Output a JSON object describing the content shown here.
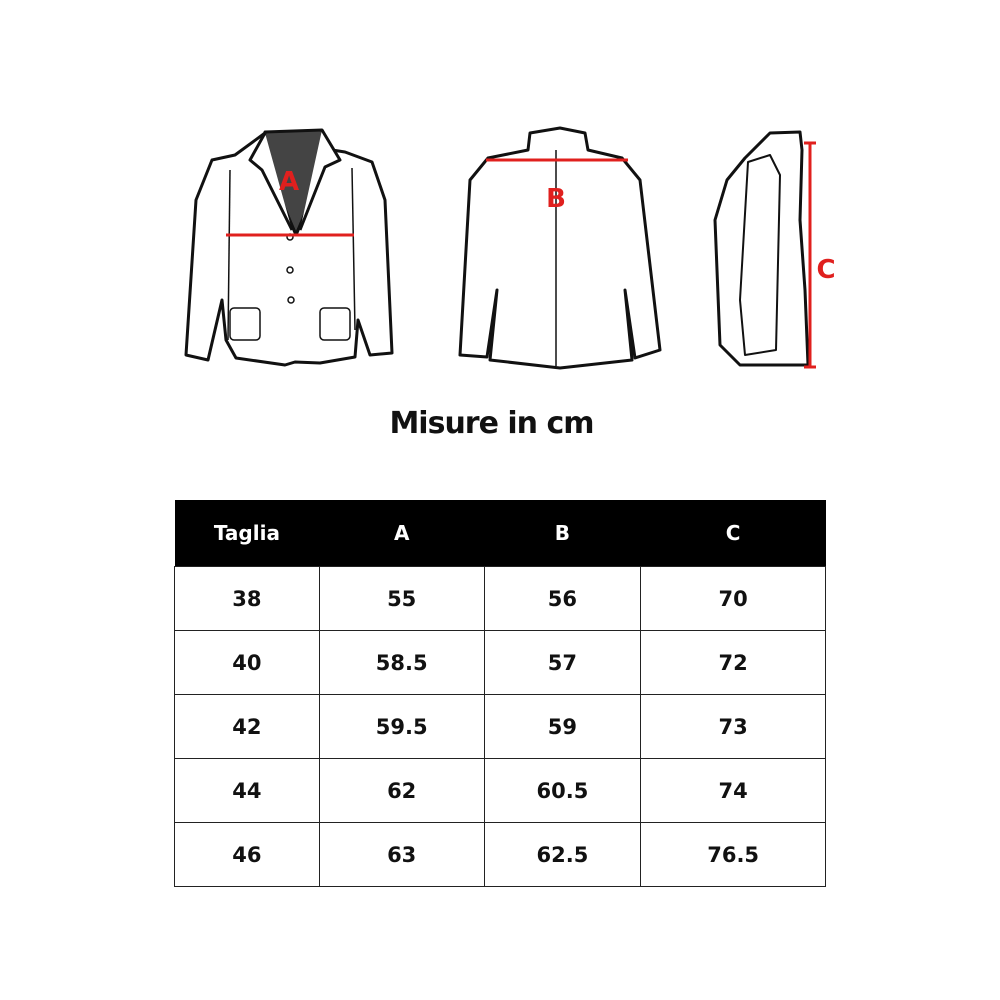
{
  "figure": {
    "labels": {
      "front": "A",
      "back": "B",
      "side": "C"
    },
    "measure_color": "#e0201e"
  },
  "title": "Misure in cm",
  "table": {
    "headers": [
      "Taglia",
      "A",
      "B",
      "C"
    ],
    "rows": [
      [
        "38",
        "55",
        "56",
        "70"
      ],
      [
        "40",
        "58.5",
        "57",
        "72"
      ],
      [
        "42",
        "59.5",
        "59",
        "73"
      ],
      [
        "44",
        "62",
        "60.5",
        "74"
      ],
      [
        "46",
        "63",
        "62.5",
        "76.5"
      ]
    ]
  }
}
